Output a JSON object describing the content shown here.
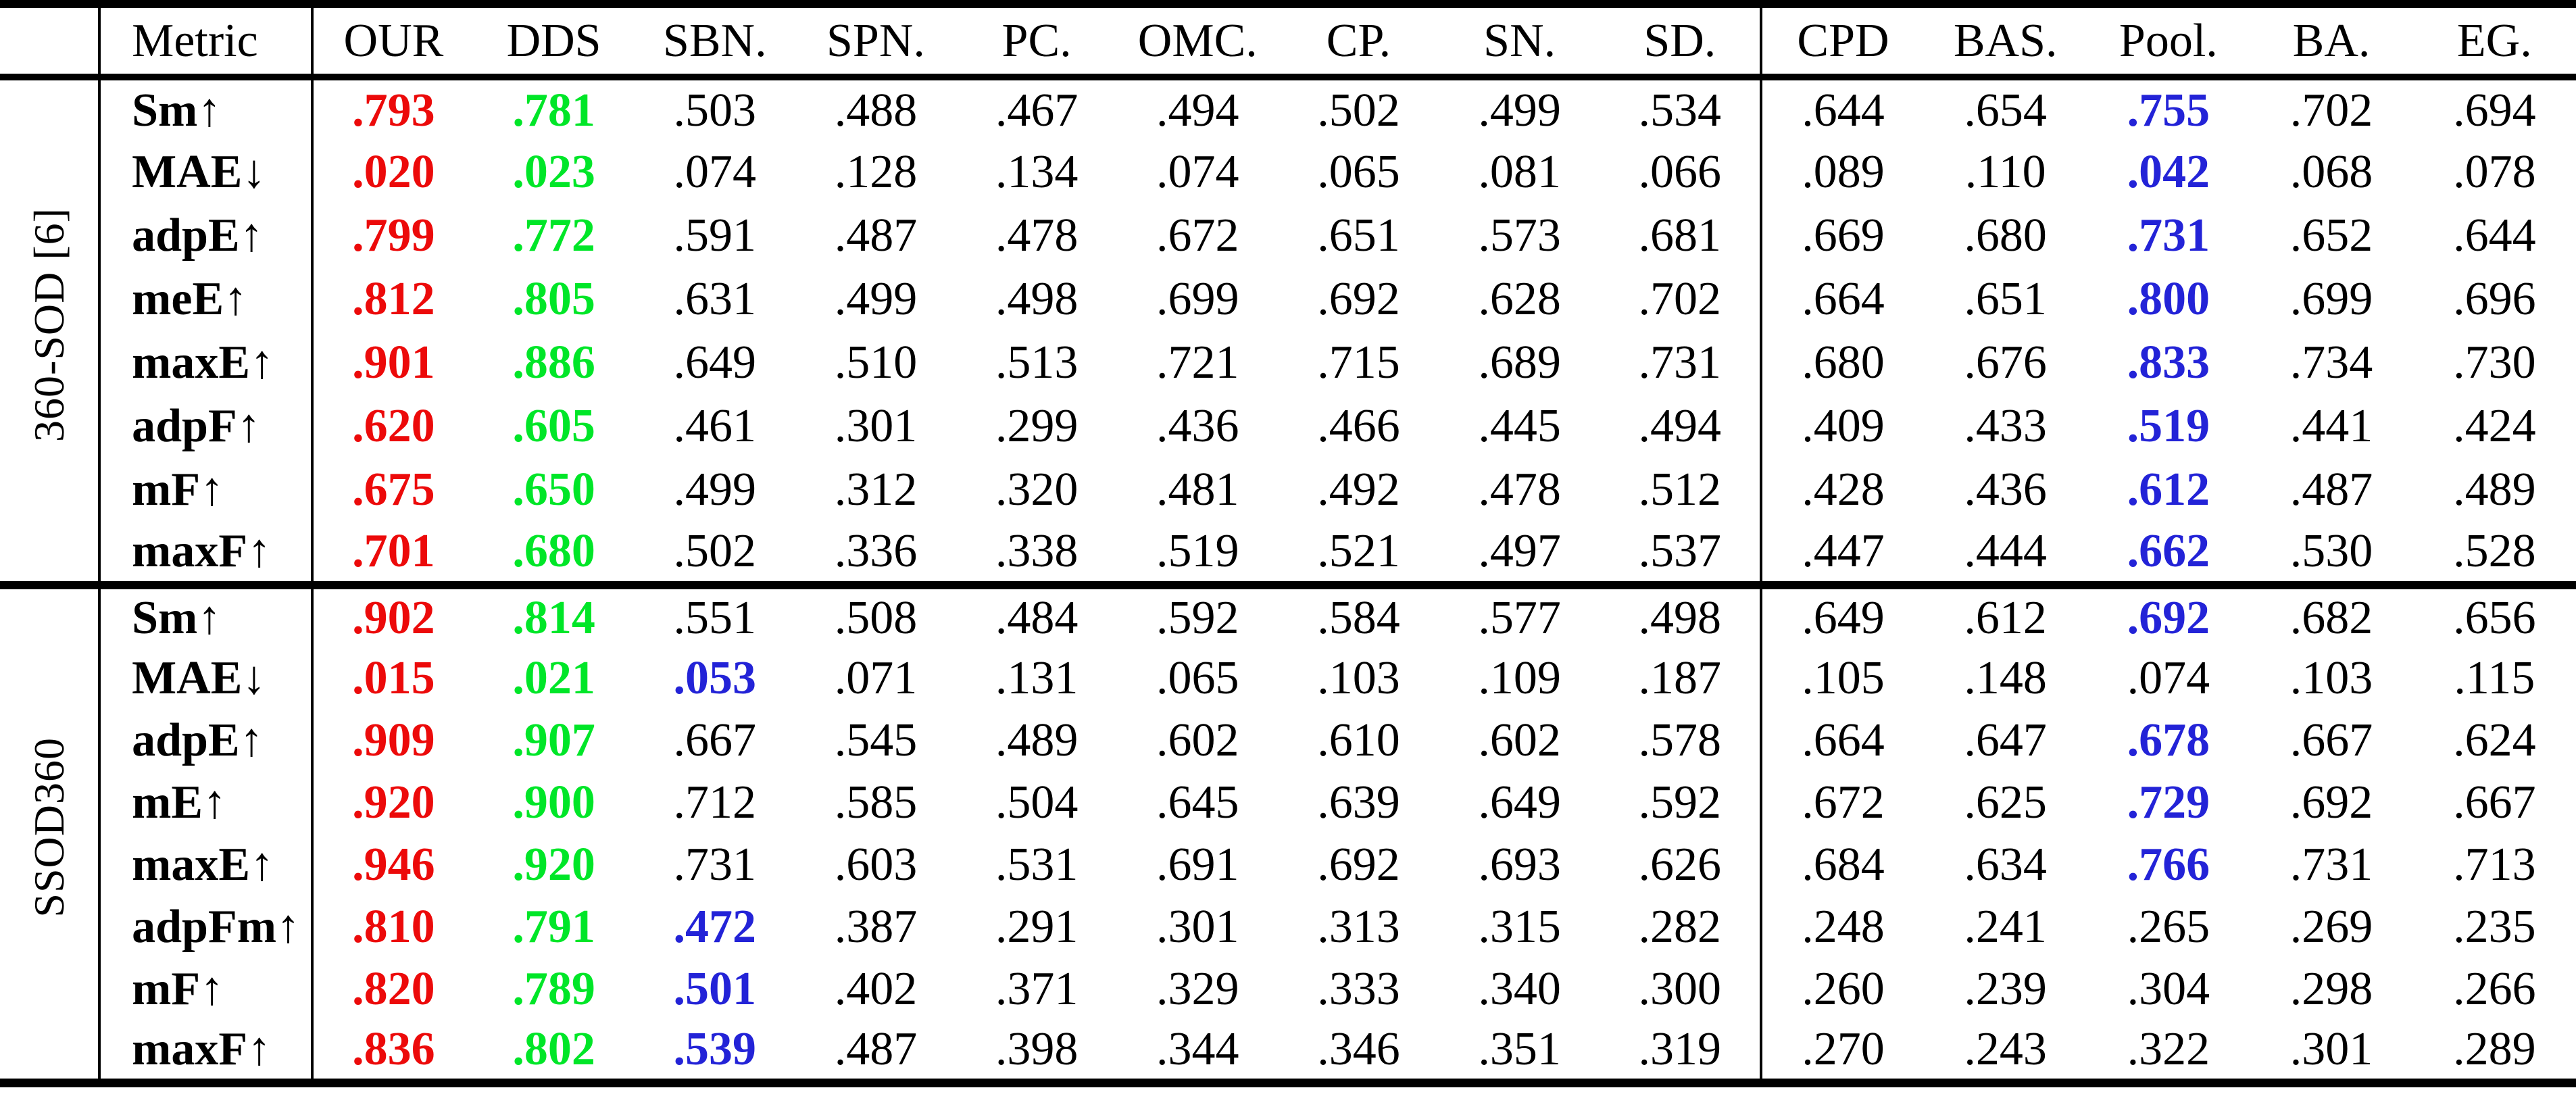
{
  "table": {
    "header": {
      "metric_label": "Metric",
      "group1": [
        "OUR",
        "DDS",
        "SBN.",
        "SPN.",
        "PC.",
        "OMC.",
        "CP.",
        "SN.",
        "SD."
      ],
      "group2": [
        "CPD",
        "BAS.",
        "Pool.",
        "BA.",
        "EG."
      ]
    },
    "colors": {
      "r": "#ec0a0a",
      "g": "#00e628",
      "b": "#2323d7",
      "k": "#000000"
    },
    "sections": [
      {
        "dataset": "360-SOD [6]",
        "rows": [
          {
            "metric": "Sm↑",
            "values": [
              ".793",
              ".781",
              ".503",
              ".488",
              ".467",
              ".494",
              ".502",
              ".499",
              ".534",
              ".644",
              ".654",
              ".755",
              ".702",
              ".694"
            ],
            "ck": "rgkkkkkkkkkbkk"
          },
          {
            "metric": "MAE↓",
            "values": [
              ".020",
              ".023",
              ".074",
              ".128",
              ".134",
              ".074",
              ".065",
              ".081",
              ".066",
              ".089",
              ".110",
              ".042",
              ".068",
              ".078"
            ],
            "ck": "rgkkkkkkkkkbkk"
          },
          {
            "metric": "adpE↑",
            "values": [
              ".799",
              ".772",
              ".591",
              ".487",
              ".478",
              ".672",
              ".651",
              ".573",
              ".681",
              ".669",
              ".680",
              ".731",
              ".652",
              ".644"
            ],
            "ck": "rgkkkkkkkkkbkk"
          },
          {
            "metric": "meE↑",
            "values": [
              ".812",
              ".805",
              ".631",
              ".499",
              ".498",
              ".699",
              ".692",
              ".628",
              ".702",
              ".664",
              ".651",
              ".800",
              ".699",
              ".696"
            ],
            "ck": "rgkkkkkkkkkbkk"
          },
          {
            "metric": "maxE↑",
            "values": [
              ".901",
              ".886",
              ".649",
              ".510",
              ".513",
              ".721",
              ".715",
              ".689",
              ".731",
              ".680",
              ".676",
              ".833",
              ".734",
              ".730"
            ],
            "ck": "rgkkkkkkkkkbkk"
          },
          {
            "metric": "adpF↑",
            "values": [
              ".620",
              ".605",
              ".461",
              ".301",
              ".299",
              ".436",
              ".466",
              ".445",
              ".494",
              ".409",
              ".433",
              ".519",
              ".441",
              ".424"
            ],
            "ck": "rgkkkkkkkkkbkk"
          },
          {
            "metric": "mF↑",
            "values": [
              ".675",
              ".650",
              ".499",
              ".312",
              ".320",
              ".481",
              ".492",
              ".478",
              ".512",
              ".428",
              ".436",
              ".612",
              ".487",
              ".489"
            ],
            "ck": "rgkkkkkkkkkbkk"
          },
          {
            "metric": "maxF↑",
            "values": [
              ".701",
              ".680",
              ".502",
              ".336",
              ".338",
              ".519",
              ".521",
              ".497",
              ".537",
              ".447",
              ".444",
              ".662",
              ".530",
              ".528"
            ],
            "ck": "rgkkkkkkkkkbkk"
          }
        ]
      },
      {
        "dataset": "SSOD360",
        "rows": [
          {
            "metric": "Sm↑",
            "values": [
              ".902",
              ".814",
              ".551",
              ".508",
              ".484",
              ".592",
              ".584",
              ".577",
              ".498",
              ".649",
              ".612",
              ".692",
              ".682",
              ".656"
            ],
            "ck": "rgkkkkkkkkkbkk"
          },
          {
            "metric": "MAE↓",
            "values": [
              ".015",
              ".021",
              ".053",
              ".071",
              ".131",
              ".065",
              ".103",
              ".109",
              ".187",
              ".105",
              ".148",
              ".074",
              ".103",
              ".115"
            ],
            "ck": "rgbkkkkkkkkkkk"
          },
          {
            "metric": "adpE↑",
            "values": [
              ".909",
              ".907",
              ".667",
              ".545",
              ".489",
              ".602",
              ".610",
              ".602",
              ".578",
              ".664",
              ".647",
              ".678",
              ".667",
              ".624"
            ],
            "ck": "rgkkkkkkkkkbkk"
          },
          {
            "metric": "mE↑",
            "values": [
              ".920",
              ".900",
              ".712",
              ".585",
              ".504",
              ".645",
              ".639",
              ".649",
              ".592",
              ".672",
              ".625",
              ".729",
              ".692",
              ".667"
            ],
            "ck": "rgkkkkkkkkkbkk"
          },
          {
            "metric": "maxE↑",
            "values": [
              ".946",
              ".920",
              ".731",
              ".603",
              ".531",
              ".691",
              ".692",
              ".693",
              ".626",
              ".684",
              ".634",
              ".766",
              ".731",
              ".713"
            ],
            "ck": "rgkkkkkkkkkbkk"
          },
          {
            "metric": "adpFm↑",
            "values": [
              ".810",
              ".791",
              ".472",
              ".387",
              ".291",
              ".301",
              ".313",
              ".315",
              ".282",
              ".248",
              ".241",
              ".265",
              ".269",
              ".235"
            ],
            "ck": "rgbkkkkkkkkkkk"
          },
          {
            "metric": "mF↑",
            "values": [
              ".820",
              ".789",
              ".501",
              ".402",
              ".371",
              ".329",
              ".333",
              ".340",
              ".300",
              ".260",
              ".239",
              ".304",
              ".298",
              ".266"
            ],
            "ck": "rgbkkkkkkkkkkk"
          },
          {
            "metric": "maxF↑",
            "values": [
              ".836",
              ".802",
              ".539",
              ".487",
              ".398",
              ".344",
              ".346",
              ".351",
              ".319",
              ".270",
              ".243",
              ".322",
              ".301",
              ".289"
            ],
            "ck": "rgbkkkkkkkkkkk"
          }
        ]
      }
    ]
  }
}
